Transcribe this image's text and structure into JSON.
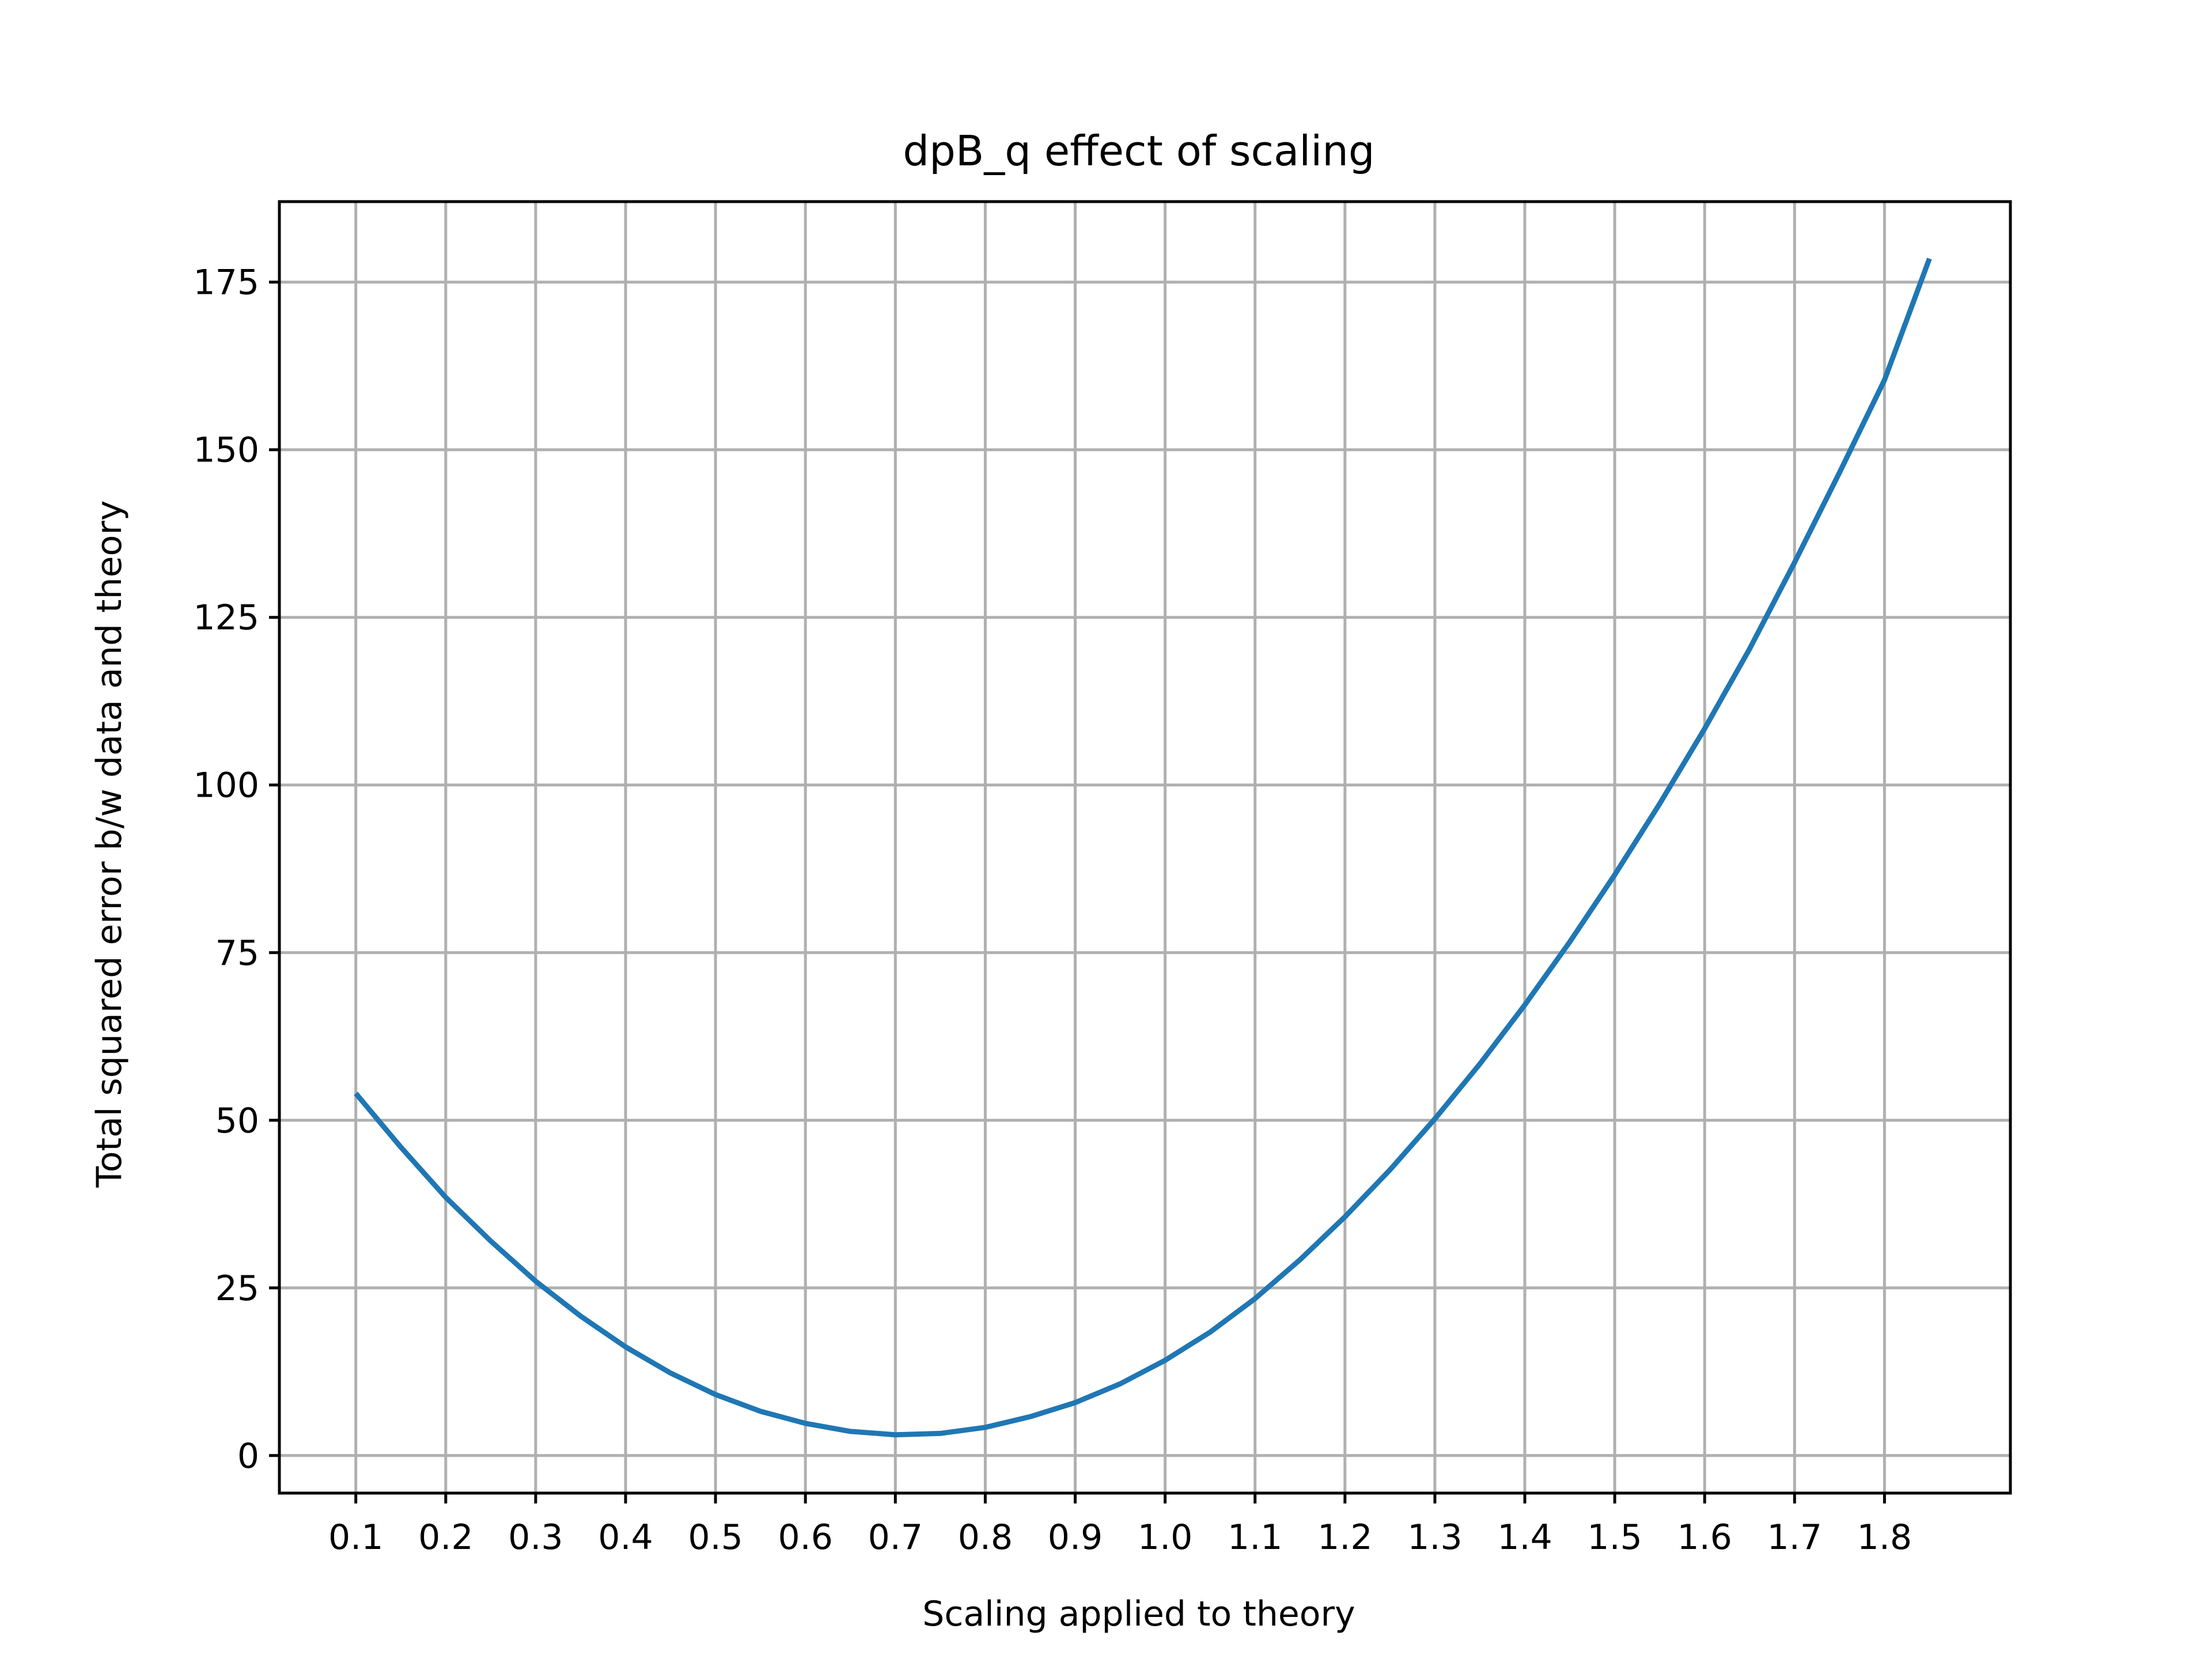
{
  "chart_data": {
    "type": "line",
    "title": "dpB_q effect of scaling",
    "xlabel": "Scaling applied to theory",
    "ylabel": "Total squared error b/w data and theory",
    "xlim": [
      0.015,
      1.94
    ],
    "ylim": [
      -5.6,
      187
    ],
    "xticks": [
      0.1,
      0.2,
      0.3,
      0.4,
      0.5,
      0.6,
      0.7,
      0.8,
      0.9,
      1.0,
      1.1,
      1.2,
      1.3,
      1.4,
      1.5,
      1.6,
      1.7,
      1.8
    ],
    "xtick_labels": [
      "0.1",
      "0.2",
      "0.3",
      "0.4",
      "0.5",
      "0.6",
      "0.7",
      "0.8",
      "0.9",
      "1.0",
      "1.1",
      "1.2",
      "1.3",
      "1.4",
      "1.5",
      "1.6",
      "1.7",
      "1.8"
    ],
    "yticks": [
      0,
      25,
      50,
      75,
      100,
      125,
      150,
      175
    ],
    "ytick_labels": [
      "0",
      "25",
      "50",
      "75",
      "100",
      "125",
      "150",
      "175"
    ],
    "grid": true,
    "line_color": "#1f77b4",
    "series": [
      {
        "x": [
          0.1,
          0.15,
          0.2,
          0.25,
          0.3,
          0.35,
          0.4,
          0.45,
          0.5,
          0.55,
          0.6,
          0.65,
          0.7,
          0.75,
          0.8,
          0.85,
          0.9,
          0.95,
          1.0,
          1.05,
          1.1,
          1.15,
          1.2,
          1.25,
          1.3,
          1.35,
          1.4,
          1.45,
          1.5,
          1.55,
          1.6,
          1.65,
          1.7,
          1.75,
          1.8,
          1.85
        ],
        "y": [
          54,
          46,
          38.5,
          32,
          26,
          20.8,
          16.2,
          12.3,
          9.1,
          6.6,
          4.8,
          3.6,
          3.1,
          3.3,
          4.2,
          5.8,
          7.9,
          10.7,
          14.2,
          18.4,
          23.4,
          29.2,
          35.6,
          42.6,
          50.2,
          58.4,
          67.2,
          76.6,
          86.6,
          97.2,
          108.4,
          120.3,
          133.2,
          146.6,
          160.4,
          178.5
        ]
      }
    ]
  }
}
